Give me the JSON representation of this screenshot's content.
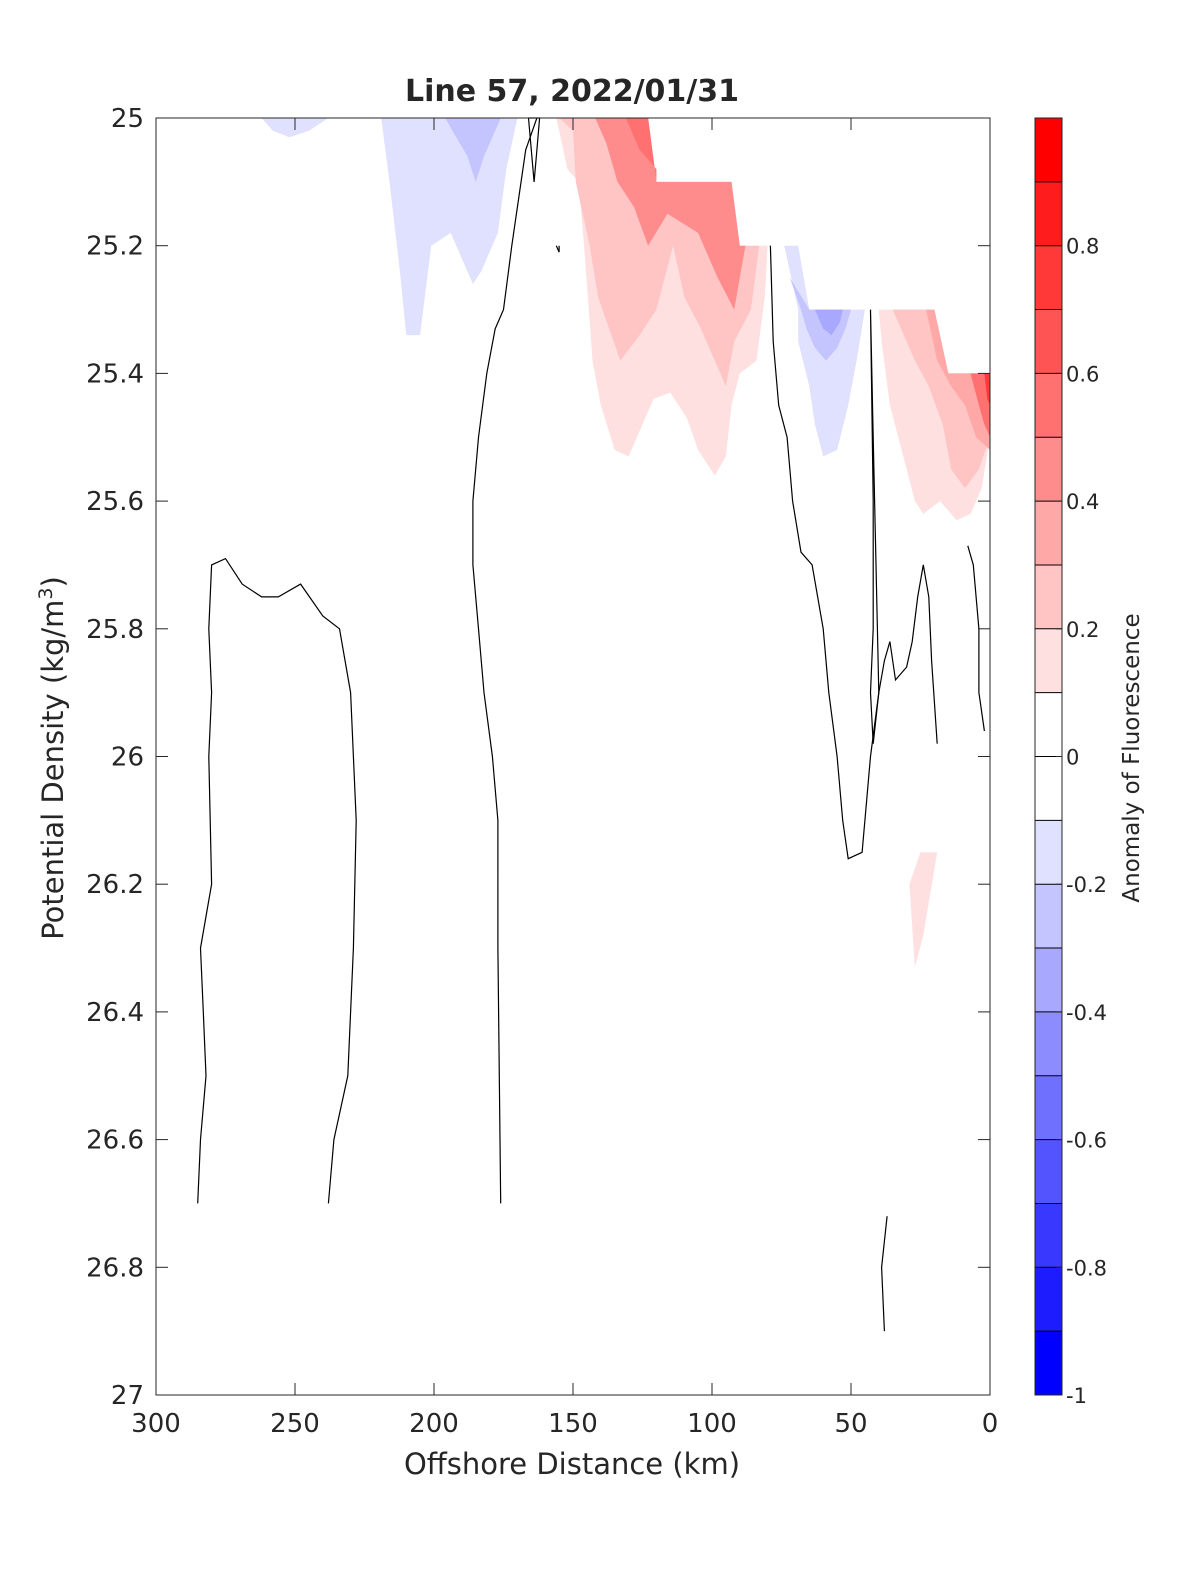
{
  "chart_data": {
    "type": "contour",
    "title": "Line 57, 2022/01/31",
    "xlabel": "Offshore Distance (km)",
    "ylabel_main": "Potential Density (kg/m",
    "ylabel_sup": "3",
    "ylabel_tail": ")",
    "xlim": [
      300,
      0
    ],
    "ylim": [
      25,
      27
    ],
    "x_ticks": [
      300,
      250,
      200,
      150,
      100,
      50,
      0
    ],
    "x_tick_labels": [
      "300",
      "250",
      "200",
      "150",
      "100",
      "50",
      "0"
    ],
    "y_ticks": [
      25,
      25.2,
      25.4,
      25.6,
      25.8,
      26,
      26.2,
      26.4,
      26.6,
      26.8,
      27
    ],
    "y_tick_labels": [
      "25",
      "25.2",
      "25.4",
      "25.6",
      "25.8",
      "26",
      "26.2",
      "26.4",
      "26.6",
      "26.8",
      "27"
    ],
    "y_reversed": true,
    "grid": false,
    "colorbar": {
      "label": "Anomaly of Fluorescence",
      "range": [
        -1,
        1
      ],
      "levels": [
        -1,
        -0.9,
        -0.8,
        -0.7,
        -0.6,
        -0.5,
        -0.4,
        -0.3,
        -0.2,
        -0.1,
        0,
        0.1,
        0.2,
        0.3,
        0.4,
        0.5,
        0.6,
        0.7,
        0.8,
        0.9,
        1
      ],
      "tick_values": [
        -1,
        -0.8,
        -0.6,
        -0.4,
        -0.2,
        0,
        0.2,
        0.4,
        0.6,
        0.8
      ],
      "tick_labels": [
        "-1",
        "-0.8",
        "-0.6",
        "-0.4",
        "-0.2",
        "0",
        "0.2",
        "0.4",
        "0.6",
        "0.8"
      ],
      "colormap": "blue-white-red",
      "negative_color": "#0000ff",
      "positive_color": "#ff0000",
      "neutral_color": "#ffffff"
    },
    "filled_regions": [
      {
        "level": -0.1,
        "points": [
          [
            250,
            25
          ],
          [
            238,
            25
          ],
          [
            245,
            25.02
          ],
          [
            252,
            25.03
          ],
          [
            258,
            25.02
          ],
          [
            262,
            25
          ]
        ]
      },
      {
        "level": -0.1,
        "points": [
          [
            219,
            25
          ],
          [
            216,
            25.1
          ],
          [
            212,
            25.25
          ],
          [
            210,
            25.34
          ],
          [
            205,
            25.34
          ],
          [
            201,
            25.2
          ],
          [
            194,
            25.18
          ],
          [
            186,
            25.26
          ],
          [
            183,
            25.24
          ],
          [
            177,
            25.18
          ],
          [
            174,
            25.08
          ],
          [
            170,
            25
          ],
          [
            219,
            25
          ]
        ]
      },
      {
        "level": -0.2,
        "points": [
          [
            196,
            25
          ],
          [
            192,
            25.03
          ],
          [
            188,
            25.06
          ],
          [
            185,
            25.1
          ],
          [
            182,
            25.06
          ],
          [
            178,
            25.02
          ],
          [
            176,
            25
          ]
        ]
      },
      {
        "level": 0.1,
        "points": [
          [
            166,
            25
          ],
          [
            156,
            25
          ],
          [
            154,
            25.04
          ],
          [
            152,
            25.08
          ],
          [
            148,
            25.1
          ],
          [
            146,
            25.2
          ],
          [
            143,
            25.38
          ],
          [
            140,
            25.45
          ],
          [
            135,
            25.52
          ],
          [
            130,
            25.53
          ],
          [
            126,
            25.49
          ],
          [
            121,
            25.44
          ],
          [
            115,
            25.43
          ],
          [
            109,
            25.47
          ],
          [
            105,
            25.52
          ],
          [
            99,
            25.56
          ],
          [
            95,
            25.53
          ],
          [
            93,
            25.45
          ],
          [
            90,
            25.4
          ],
          [
            84,
            25.38
          ],
          [
            81,
            25.28
          ],
          [
            80,
            25.2
          ],
          [
            90,
            25.2
          ],
          [
            93,
            25.1
          ],
          [
            120,
            25.1
          ],
          [
            123,
            25
          ],
          [
            166,
            25
          ]
        ]
      },
      {
        "level": 0.2,
        "points": [
          [
            155,
            25
          ],
          [
            150,
            25.02
          ],
          [
            149,
            25.1
          ],
          [
            144,
            25.2
          ],
          [
            141,
            25.28
          ],
          [
            137,
            25.33
          ],
          [
            133,
            25.38
          ],
          [
            126,
            25.34
          ],
          [
            120,
            25.3
          ],
          [
            114,
            25.2
          ],
          [
            110,
            25.28
          ],
          [
            104,
            25.33
          ],
          [
            99,
            25.38
          ],
          [
            95,
            25.42
          ],
          [
            92,
            25.35
          ],
          [
            86,
            25.3
          ],
          [
            83,
            25.2
          ],
          [
            90,
            25.2
          ],
          [
            93,
            25.1
          ],
          [
            120,
            25.1
          ],
          [
            123,
            25
          ],
          [
            155,
            25
          ]
        ]
      },
      {
        "level": 0.4,
        "points": [
          [
            142,
            25
          ],
          [
            138,
            25.04
          ],
          [
            134,
            25.1
          ],
          [
            128,
            25.14
          ],
          [
            123,
            25.2
          ],
          [
            116,
            25.15
          ],
          [
            105,
            25.18
          ],
          [
            98,
            25.25
          ],
          [
            92,
            25.3
          ],
          [
            88,
            25.2
          ],
          [
            90,
            25.2
          ],
          [
            93,
            25.1
          ],
          [
            120,
            25.1
          ],
          [
            123,
            25
          ],
          [
            142,
            25
          ]
        ]
      },
      {
        "level": 0.5,
        "points": [
          [
            131,
            25
          ],
          [
            126,
            25.05
          ],
          [
            120,
            25.08
          ],
          [
            120,
            25.1
          ],
          [
            123,
            25
          ],
          [
            131,
            25
          ]
        ]
      },
      {
        "level": 0.1,
        "points": [
          [
            40,
            25.3
          ],
          [
            20,
            25.3
          ],
          [
            15,
            25.4
          ],
          [
            0,
            25.4
          ],
          [
            0,
            25.5
          ],
          [
            3,
            25.58
          ],
          [
            7,
            25.62
          ],
          [
            12,
            25.63
          ],
          [
            18,
            25.6
          ],
          [
            24,
            25.62
          ],
          [
            27,
            25.6
          ],
          [
            30,
            25.55
          ],
          [
            33,
            25.5
          ],
          [
            36,
            25.45
          ],
          [
            39,
            25.35
          ],
          [
            40,
            25.3
          ]
        ]
      },
      {
        "level": 0.2,
        "points": [
          [
            35,
            25.3
          ],
          [
            20,
            25.3
          ],
          [
            15,
            25.4
          ],
          [
            0,
            25.4
          ],
          [
            0,
            25.5
          ],
          [
            4,
            25.55
          ],
          [
            9,
            25.58
          ],
          [
            14,
            25.55
          ],
          [
            17,
            25.48
          ],
          [
            22,
            25.42
          ],
          [
            27,
            25.38
          ],
          [
            31,
            25.34
          ],
          [
            35,
            25.3
          ]
        ]
      },
      {
        "level": 0.3,
        "points": [
          [
            23,
            25.3
          ],
          [
            20,
            25.3
          ],
          [
            15,
            25.4
          ],
          [
            0,
            25.4
          ],
          [
            0,
            25.52
          ],
          [
            5,
            25.5
          ],
          [
            9,
            25.45
          ],
          [
            14,
            25.42
          ],
          [
            19,
            25.38
          ],
          [
            23,
            25.3
          ]
        ]
      },
      {
        "level": 0.5,
        "points": [
          [
            7,
            25.4
          ],
          [
            0,
            25.4
          ],
          [
            0,
            25.5
          ],
          [
            2,
            25.48
          ],
          [
            4,
            25.45
          ],
          [
            7,
            25.4
          ]
        ]
      },
      {
        "level": 0.7,
        "points": [
          [
            2,
            25.4
          ],
          [
            0,
            25.4
          ],
          [
            0,
            25.45
          ],
          [
            1,
            25.44
          ],
          [
            2,
            25.4
          ]
        ]
      },
      {
        "level": -0.1,
        "points": [
          [
            74,
            25.2
          ],
          [
            69,
            25.3
          ],
          [
            69,
            25.35
          ],
          [
            65,
            25.42
          ],
          [
            63,
            25.48
          ],
          [
            60,
            25.53
          ],
          [
            55,
            25.52
          ],
          [
            51,
            25.45
          ],
          [
            48,
            25.38
          ],
          [
            45,
            25.3
          ],
          [
            50,
            25.3
          ],
          [
            55,
            25.3
          ],
          [
            65,
            25.3
          ],
          [
            69,
            25.2
          ],
          [
            74,
            25.2
          ]
        ]
      },
      {
        "level": -0.2,
        "points": [
          [
            72,
            25.25
          ],
          [
            68,
            25.3
          ],
          [
            66,
            25.33
          ],
          [
            63,
            25.36
          ],
          [
            59,
            25.38
          ],
          [
            55,
            25.36
          ],
          [
            52,
            25.33
          ],
          [
            50,
            25.3
          ],
          [
            65,
            25.3
          ],
          [
            72,
            25.25
          ]
        ]
      },
      {
        "level": -0.3,
        "points": [
          [
            63,
            25.3
          ],
          [
            60,
            25.33
          ],
          [
            57,
            25.34
          ],
          [
            54,
            25.32
          ],
          [
            53,
            25.3
          ],
          [
            63,
            25.3
          ]
        ]
      },
      {
        "level": 0.1,
        "points": [
          [
            29,
            26.2
          ],
          [
            25,
            26.15
          ],
          [
            19,
            26.15
          ],
          [
            24,
            26.28
          ],
          [
            27,
            26.33
          ],
          [
            29,
            26.2
          ]
        ]
      }
    ],
    "zero_contours": [
      [
        [
          285,
          26.7
        ],
        [
          284,
          26.6
        ],
        [
          282,
          26.5
        ],
        [
          283,
          26.4
        ],
        [
          284,
          26.3
        ],
        [
          280,
          26.2
        ],
        [
          281,
          26
        ],
        [
          280,
          25.9
        ],
        [
          281,
          25.8
        ],
        [
          280,
          25.7
        ],
        [
          275,
          25.69
        ],
        [
          269,
          25.73
        ],
        [
          262,
          25.75
        ],
        [
          256,
          25.75
        ],
        [
          248,
          25.73
        ],
        [
          240,
          25.78
        ],
        [
          234,
          25.8
        ],
        [
          230,
          25.9
        ],
        [
          228,
          26.1
        ],
        [
          229,
          26.3
        ],
        [
          231,
          26.5
        ],
        [
          236,
          26.6
        ],
        [
          238,
          26.7
        ]
      ],
      [
        [
          176,
          26.7
        ],
        [
          177,
          26.3
        ],
        [
          177,
          26.1
        ],
        [
          179,
          26
        ],
        [
          182,
          25.9
        ],
        [
          184,
          25.8
        ],
        [
          186,
          25.7
        ],
        [
          186,
          25.6
        ],
        [
          184,
          25.5
        ],
        [
          181,
          25.4
        ],
        [
          178,
          25.33
        ],
        [
          175,
          25.3
        ],
        [
          172,
          25.2
        ],
        [
          167,
          25.05
        ],
        [
          163,
          25.0
        ]
      ],
      [
        [
          164,
          25.1
        ],
        [
          163,
          25.05
        ],
        [
          162,
          25.0
        ],
        [
          166,
          25.0
        ],
        [
          164,
          25.1
        ]
      ],
      [
        [
          155,
          25.2
        ],
        [
          155,
          25.21
        ],
        [
          156,
          25.2
        ]
      ],
      [
        [
          79,
          25.2
        ],
        [
          78,
          25.35
        ],
        [
          76,
          25.45
        ],
        [
          73,
          25.5
        ],
        [
          71,
          25.6
        ],
        [
          68,
          25.68
        ],
        [
          64,
          25.7
        ],
        [
          60,
          25.8
        ],
        [
          58,
          25.9
        ],
        [
          55,
          26.0
        ],
        [
          53,
          26.1
        ],
        [
          51,
          26.16
        ],
        [
          46,
          26.15
        ],
        [
          43,
          26.0
        ],
        [
          40,
          25.9
        ],
        [
          38,
          25.85
        ],
        [
          36,
          25.82
        ],
        [
          34,
          25.88
        ],
        [
          30,
          25.86
        ],
        [
          28,
          25.82
        ],
        [
          26,
          25.75
        ],
        [
          24,
          25.7
        ],
        [
          22,
          25.75
        ],
        [
          21,
          25.85
        ],
        [
          19,
          25.98
        ]
      ],
      [
        [
          43,
          25.3
        ],
        [
          42,
          25.5
        ],
        [
          41,
          25.7
        ],
        [
          40,
          25.9
        ],
        [
          42,
          25.98
        ],
        [
          43,
          25.9
        ],
        [
          42,
          25.8
        ],
        [
          42,
          25.6
        ],
        [
          43,
          25.3
        ]
      ],
      [
        [
          8,
          25.67
        ],
        [
          6,
          25.7
        ],
        [
          4,
          25.8
        ],
        [
          4,
          25.9
        ],
        [
          2,
          25.96
        ]
      ],
      [
        [
          37,
          26.72
        ],
        [
          39,
          26.8
        ],
        [
          38,
          26.9
        ]
      ]
    ]
  }
}
